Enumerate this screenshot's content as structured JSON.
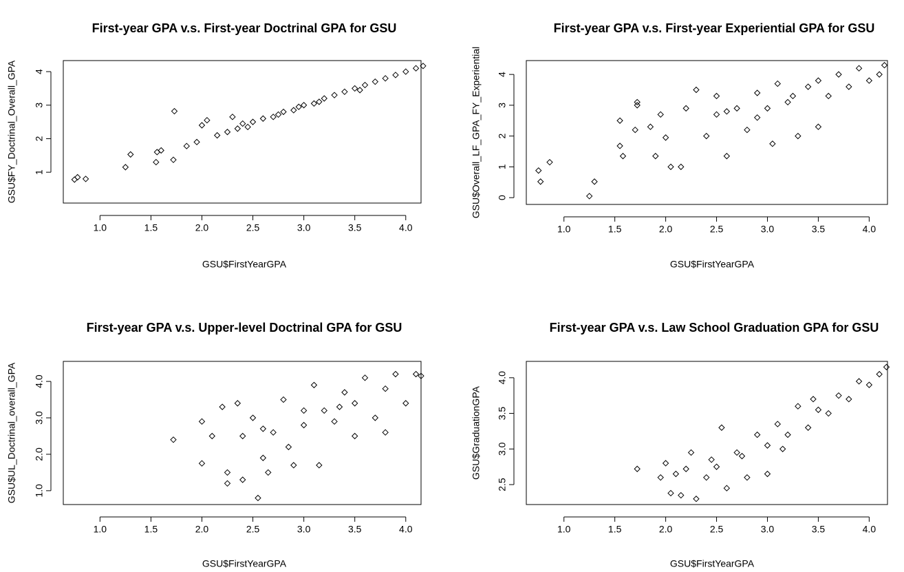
{
  "chart_data": [
    {
      "type": "scatter",
      "title": "First-year GPA v.s. First-year Doctrinal GPA for GSU",
      "x_label": "GSU$FirstYearGPA",
      "y_label": "GSU$FY_Doctrinal_Overall_GPA",
      "x": [
        0.75,
        0.78,
        0.86,
        1.25,
        1.3,
        1.55,
        1.56,
        1.6,
        1.72,
        1.73,
        1.85,
        1.95,
        2.0,
        2.05,
        2.15,
        2.25,
        2.3,
        2.4,
        2.5,
        2.6,
        2.7,
        2.8,
        2.9,
        3.0,
        3.1,
        3.2,
        3.3,
        3.4,
        3.5,
        3.6,
        3.7,
        3.8,
        3.9,
        4.0,
        4.1,
        4.17,
        2.45,
        2.75,
        3.15,
        3.55,
        2.35,
        2.95
      ],
      "values": [
        0.78,
        0.85,
        0.8,
        1.15,
        1.53,
        1.3,
        1.6,
        1.65,
        1.37,
        2.82,
        1.78,
        1.9,
        2.4,
        2.55,
        2.1,
        2.2,
        2.65,
        2.45,
        2.5,
        2.6,
        2.65,
        2.8,
        2.85,
        3.0,
        3.05,
        3.2,
        3.3,
        3.4,
        3.5,
        3.6,
        3.7,
        3.8,
        3.9,
        4.0,
        4.1,
        4.17,
        2.35,
        2.72,
        3.1,
        3.45,
        2.3,
        2.95
      ],
      "xlim": [
        0.64,
        4.15
      ],
      "ylim": [
        0.08,
        4.33
      ],
      "xticks": [
        {
          "value": 1,
          "label": "1.0"
        },
        1.5,
        {
          "value": 2,
          "label": "2.0"
        },
        2.5,
        {
          "value": 3,
          "label": "3.0"
        },
        3.5,
        {
          "value": 4,
          "label": "4.0"
        }
      ],
      "yticks": [
        1,
        2,
        3,
        4
      ]
    },
    {
      "type": "scatter",
      "title": "First-year GPA v.s. First-year Experiential GPA for GSU",
      "x_label": "GSU$FirstYearGPA",
      "y_label": "GSU$Overall_LF_GPA_FY_Experiential",
      "x": [
        0.75,
        0.77,
        0.86,
        1.25,
        1.3,
        1.55,
        1.55,
        1.58,
        1.7,
        1.72,
        1.72,
        1.85,
        1.9,
        1.95,
        2.0,
        2.05,
        2.15,
        2.2,
        2.3,
        2.4,
        2.5,
        2.5,
        2.6,
        2.7,
        2.8,
        2.9,
        3.0,
        3.05,
        3.1,
        3.2,
        3.3,
        3.4,
        3.5,
        3.5,
        3.6,
        3.7,
        3.8,
        3.9,
        4.0,
        4.1,
        4.15,
        2.6,
        3.25,
        2.9
      ],
      "values": [
        0.88,
        0.52,
        1.15,
        0.05,
        0.52,
        2.5,
        1.68,
        1.35,
        2.2,
        3.1,
        3.0,
        2.3,
        1.35,
        2.7,
        1.95,
        1.0,
        1.0,
        2.9,
        3.5,
        2.0,
        2.7,
        3.3,
        1.35,
        2.9,
        2.2,
        3.4,
        2.9,
        1.75,
        3.7,
        3.1,
        2.0,
        3.6,
        2.3,
        3.8,
        3.3,
        4.0,
        3.6,
        4.2,
        3.8,
        4.0,
        4.3,
        2.8,
        3.3,
        2.6
      ],
      "xlim": [
        0.63,
        4.18
      ],
      "ylim": [
        -0.22,
        4.45
      ],
      "xticks": [
        {
          "value": 1,
          "label": "1.0"
        },
        1.5,
        {
          "value": 2,
          "label": "2.0"
        },
        2.5,
        {
          "value": 3,
          "label": "3.0"
        },
        3.5,
        {
          "value": 4,
          "label": "4.0"
        }
      ],
      "yticks": [
        0,
        1,
        2,
        3,
        4
      ]
    },
    {
      "type": "scatter",
      "title": "First-year GPA v.s. Upper-level Doctrinal GPA for GSU",
      "x_label": "GSU$FirstYearGPA",
      "y_label": "GSU$UL_Doctrinal_overall_GPA",
      "x": [
        1.72,
        2.0,
        2.0,
        2.1,
        2.2,
        2.25,
        2.25,
        2.35,
        2.4,
        2.4,
        2.5,
        2.55,
        2.6,
        2.65,
        2.7,
        2.8,
        2.85,
        2.9,
        3.0,
        3.1,
        3.15,
        3.2,
        3.3,
        3.4,
        3.5,
        3.5,
        3.6,
        3.7,
        3.8,
        3.8,
        3.9,
        4.0,
        4.1,
        4.15,
        2.6,
        3.0,
        3.35
      ],
      "values": [
        2.4,
        1.75,
        2.9,
        2.5,
        3.3,
        1.5,
        1.2,
        3.4,
        1.3,
        2.5,
        3.0,
        0.8,
        1.9,
        1.5,
        2.6,
        3.5,
        2.2,
        1.7,
        2.8,
        3.9,
        1.7,
        3.2,
        2.9,
        3.7,
        2.5,
        3.4,
        4.1,
        3.0,
        2.6,
        3.8,
        4.2,
        3.4,
        4.2,
        4.15,
        2.7,
        3.2,
        3.3
      ],
      "xlim": [
        0.64,
        4.15
      ],
      "ylim": [
        0.62,
        4.55
      ],
      "xticks": [
        {
          "value": 1,
          "label": "1.0"
        },
        1.5,
        {
          "value": 2,
          "label": "2.0"
        },
        2.5,
        {
          "value": 3,
          "label": "3.0"
        },
        3.5,
        {
          "value": 4,
          "label": "4.0"
        }
      ],
      "yticks": [
        {
          "value": 1,
          "label": "1.0"
        },
        {
          "value": 2,
          "label": "2.0"
        },
        {
          "value": 3,
          "label": "3.0"
        },
        {
          "value": 4,
          "label": "4.0"
        }
      ]
    },
    {
      "type": "scatter",
      "title": "First-year GPA v.s. Law School Graduation GPA for GSU",
      "x_label": "GSU$FirstYearGPA",
      "y_label": "GSU$GraduationGPA",
      "x": [
        1.72,
        1.95,
        2.0,
        2.05,
        2.1,
        2.15,
        2.2,
        2.25,
        2.3,
        2.4,
        2.45,
        2.5,
        2.55,
        2.6,
        2.7,
        2.8,
        2.9,
        3.0,
        3.0,
        3.1,
        3.2,
        3.3,
        3.4,
        3.5,
        3.6,
        3.7,
        3.8,
        3.9,
        4.0,
        4.1,
        4.17,
        2.75,
        3.15,
        3.45
      ],
      "values": [
        2.72,
        2.6,
        2.8,
        2.38,
        2.65,
        2.35,
        2.72,
        2.95,
        2.3,
        2.6,
        2.85,
        2.75,
        3.3,
        2.45,
        2.95,
        2.6,
        3.2,
        3.05,
        2.65,
        3.35,
        3.2,
        3.6,
        3.3,
        3.55,
        3.5,
        3.75,
        3.7,
        3.95,
        3.9,
        4.05,
        4.15,
        2.9,
        3.0,
        3.7
      ],
      "xlim": [
        0.63,
        4.18
      ],
      "ylim": [
        2.22,
        4.23
      ],
      "xticks": [
        {
          "value": 1,
          "label": "1.0"
        },
        1.5,
        {
          "value": 2,
          "label": "2.0"
        },
        2.5,
        {
          "value": 3,
          "label": "3.0"
        },
        3.5,
        {
          "value": 4,
          "label": "4.0"
        }
      ],
      "yticks": [
        2.5,
        {
          "value": 3,
          "label": "3.0"
        },
        3.5,
        {
          "value": 4,
          "label": "4.0"
        }
      ]
    }
  ]
}
